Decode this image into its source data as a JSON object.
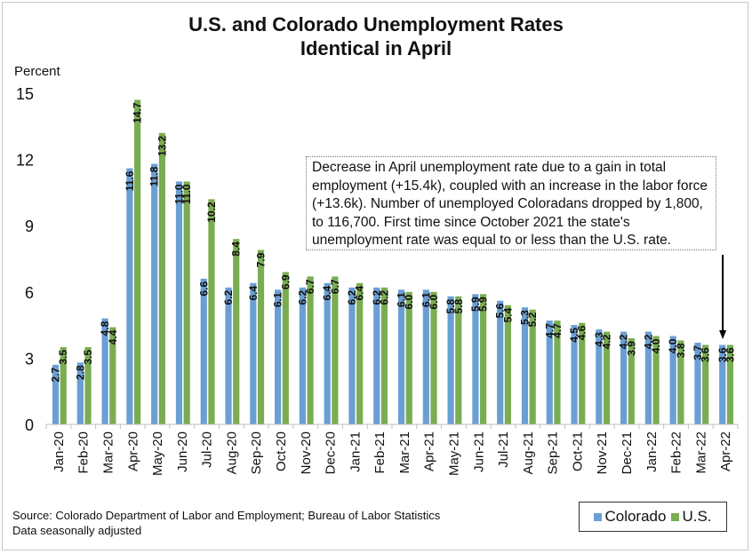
{
  "chart_data": {
    "type": "bar",
    "title": "U.S. and Colorado Unemployment Rates\nIdentical in April",
    "title_lines": [
      "U.S. and Colorado Unemployment Rates",
      "Identical in April"
    ],
    "ylabel": "Percent",
    "xlabel": "",
    "ylim": [
      0,
      15
    ],
    "yticks": [
      0,
      3,
      6,
      9,
      12,
      15
    ],
    "grid": false,
    "legend_position": "bottom-right",
    "categories": [
      "Jan-20",
      "Feb-20",
      "Mar-20",
      "Apr-20",
      "May-20",
      "Jun-20",
      "Jul-20",
      "Aug-20",
      "Sep-20",
      "Oct-20",
      "Nov-20",
      "Dec-20",
      "Jan-21",
      "Feb-21",
      "Mar-21",
      "Apr-21",
      "May-21",
      "Jun-21",
      "Jul-21",
      "Aug-21",
      "Sep-21",
      "Oct-21",
      "Nov-21",
      "Dec-21",
      "Jan-22",
      "Feb-22",
      "Mar-22",
      "Apr-22"
    ],
    "series": [
      {
        "name": "Colorado",
        "color": "#6a9fd4",
        "values": [
          2.7,
          2.8,
          4.8,
          11.6,
          11.8,
          11.0,
          6.6,
          6.2,
          6.4,
          6.1,
          6.2,
          6.4,
          6.2,
          6.2,
          6.1,
          6.1,
          5.8,
          5.9,
          5.6,
          5.3,
          4.7,
          4.5,
          4.3,
          4.2,
          4.2,
          4.0,
          3.7,
          3.6
        ]
      },
      {
        "name": "U.S.",
        "color": "#7aad52",
        "values": [
          3.5,
          3.5,
          4.4,
          14.7,
          13.2,
          11.0,
          10.2,
          8.4,
          7.9,
          6.9,
          6.7,
          6.7,
          6.4,
          6.2,
          6.0,
          6.0,
          5.8,
          5.9,
          5.4,
          5.2,
          4.7,
          4.6,
          4.2,
          3.9,
          4.0,
          3.8,
          3.6,
          3.6
        ]
      }
    ],
    "annotation": {
      "text": "Decrease in April unemployment rate due to a gain in total employment (+15.4k), coupled with an increase in the labor force (+13.6k). Number of unemployed Coloradans dropped by 1,800, to 116,700. First time since October 2021 the state's unemployment rate was equal to or less than the U.S. rate.",
      "points_to": "Apr-22"
    }
  },
  "footer": {
    "source": "Source: Colorado Department of Labor and Employment; Bureau of Labor Statistics",
    "note": "Data seasonally adjusted"
  },
  "legend": {
    "items": [
      {
        "label": "Colorado",
        "color": "#6a9fd4"
      },
      {
        "label": "U.S.",
        "color": "#7aad52"
      }
    ]
  }
}
